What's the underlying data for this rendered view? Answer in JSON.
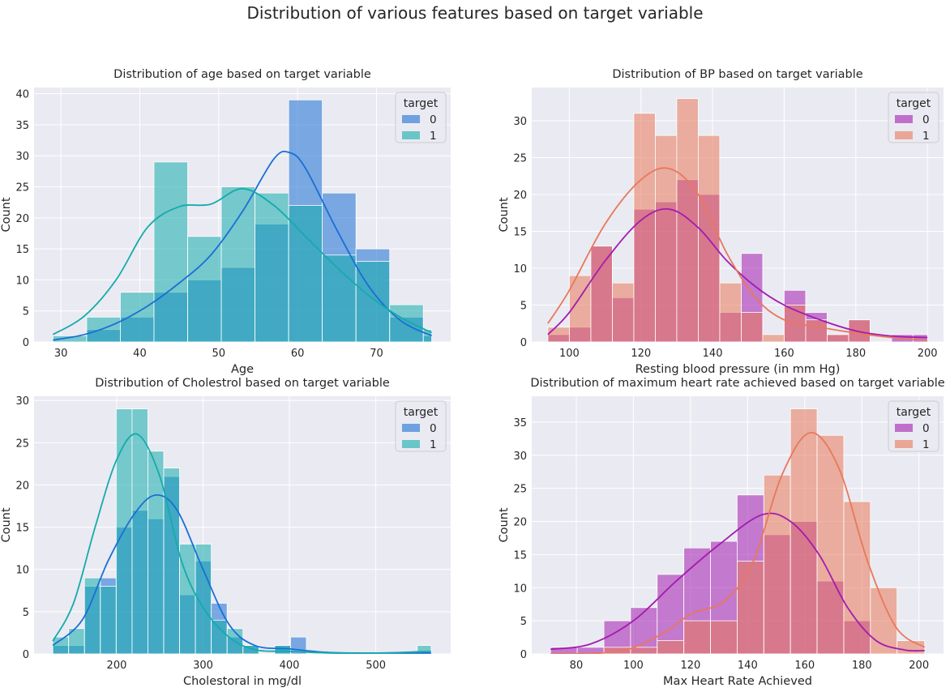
{
  "suptitle": "Distribution of various features based on target variable",
  "colors": {
    "panel_bg": "#EAEAF2",
    "grid": "#FFFFFF",
    "blue_0": "#1A6FD4",
    "teal_1": "#14ABAB",
    "magenta_0": "#A21CAF",
    "salmon_1": "#E8785A"
  },
  "chart_data": [
    {
      "type": "histogram",
      "title": "Distribution of age based on target variable",
      "xlabel": "Age",
      "ylabel": "Count",
      "xlim": [
        26.6,
        79.4
      ],
      "ylim": [
        0,
        41
      ],
      "xticks": [
        30,
        40,
        50,
        60,
        70
      ],
      "yticks": [
        0,
        5,
        10,
        15,
        20,
        25,
        30,
        35,
        40
      ],
      "bin_edges": [
        29,
        33.27,
        37.53,
        41.8,
        46.07,
        50.33,
        54.6,
        58.87,
        63.13,
        67.4,
        71.67,
        75.93,
        77
      ],
      "legend": {
        "title": "target",
        "placement": "upper right",
        "entries": [
          "0",
          "1"
        ]
      },
      "series": [
        {
          "name": "0",
          "color": "#1A6FD4",
          "counts": [
            0,
            2,
            4,
            8,
            10,
            12,
            19,
            39,
            24,
            15,
            4,
            1
          ],
          "kde_x": [
            29,
            33,
            37,
            41,
            45,
            49,
            53,
            57,
            59,
            61,
            65,
            69,
            73,
            77
          ],
          "kde_y": [
            0.3,
            1.2,
            3,
            5.8,
            9.5,
            14,
            21,
            29.5,
            30.5,
            28,
            18,
            9,
            3.5,
            1
          ]
        },
        {
          "name": "1",
          "color": "#14ABAB",
          "counts": [
            1,
            4,
            8,
            29,
            17,
            25,
            24,
            22,
            14,
            13,
            6,
            2
          ],
          "kde_x": [
            29,
            33,
            37,
            41,
            45,
            49,
            53,
            57,
            61,
            65,
            69,
            73,
            77
          ],
          "kde_y": [
            1.2,
            4.2,
            10,
            18.5,
            21.8,
            22.2,
            24.7,
            22,
            17,
            12,
            7.5,
            4,
            1.5
          ]
        }
      ]
    },
    {
      "type": "histogram",
      "title": "Distribution of BP based on target variable",
      "xlabel": "Resting blood pressure (in mm Hg)",
      "ylabel": "Count",
      "xlim": [
        89.5,
        204.5
      ],
      "ylim": [
        0,
        34.5
      ],
      "xticks": [
        100,
        120,
        140,
        160,
        180,
        200
      ],
      "yticks": [
        0,
        5,
        10,
        15,
        20,
        25,
        30
      ],
      "bin_edges": [
        94,
        100,
        106,
        112,
        118,
        124,
        130,
        136,
        142,
        148,
        154,
        160,
        166,
        172,
        178,
        184,
        190,
        196,
        200
      ],
      "legend": {
        "title": "target",
        "placement": "upper right",
        "entries": [
          "0",
          "1"
        ]
      },
      "series": [
        {
          "name": "0",
          "color": "#A21CAF",
          "counts": [
            1,
            2,
            13,
            6,
            18,
            19,
            22,
            20,
            4,
            12,
            0,
            7,
            4,
            1,
            3,
            0,
            1,
            1
          ],
          "kde_x": [
            94,
            100,
            110,
            120,
            128,
            136,
            144,
            152,
            160,
            170,
            180,
            190,
            200
          ],
          "kde_y": [
            1,
            4,
            11,
            16.5,
            18,
            15.5,
            11,
            7.5,
            5,
            3,
            1.5,
            0.8,
            0.6
          ]
        },
        {
          "name": "1",
          "color": "#E8785A",
          "counts": [
            2,
            9,
            13,
            8,
            31,
            28,
            33,
            28,
            8,
            4,
            1,
            5,
            3,
            1,
            3,
            0,
            0,
            0
          ],
          "kde_x": [
            94,
            100,
            110,
            120,
            128,
            136,
            144,
            152,
            160,
            170,
            180,
            190,
            200
          ],
          "kde_y": [
            2.5,
            7,
            16,
            22,
            23.5,
            20,
            12,
            6,
            3,
            2,
            1.2,
            0.6,
            0.2
          ]
        }
      ]
    },
    {
      "type": "histogram",
      "title": "Distribution of Cholestrol based on target variable",
      "xlabel": "Cholestoral in mg/dl",
      "ylabel": "Count",
      "xlim": [
        104.3,
        586.7
      ],
      "ylim": [
        0,
        30.5
      ],
      "xticks": [
        200,
        300,
        400,
        500
      ],
      "yticks": [
        0,
        5,
        10,
        15,
        20,
        25,
        30
      ],
      "bin_edges": [
        126,
        144.35,
        162.7,
        181.05,
        199.4,
        217.75,
        236.1,
        254.45,
        272.8,
        291.15,
        309.5,
        327.85,
        346.2,
        364.55,
        382.9,
        401.25,
        419.6,
        437.95,
        456.3,
        474.65,
        493,
        511.35,
        529.7,
        548.05,
        564
      ],
      "legend": {
        "title": "target",
        "placement": "upper right",
        "entries": [
          "0",
          "1"
        ]
      },
      "series": [
        {
          "name": "0",
          "color": "#1A6FD4",
          "counts": [
            1,
            1,
            8,
            9,
            15,
            17,
            16,
            21,
            7,
            11,
            6,
            2,
            1,
            0,
            1,
            2,
            0,
            0,
            0,
            0,
            0,
            0,
            0,
            0
          ],
          "kde_x": [
            126,
            160,
            190,
            220,
            245,
            270,
            300,
            330,
            360,
            400,
            440,
            480,
            520,
            564
          ],
          "kde_y": [
            1,
            4,
            11,
            16.5,
            18.8,
            17,
            10,
            3.5,
            1,
            0.6,
            0.2,
            0.1,
            0.1,
            0.1
          ]
        },
        {
          "name": "1",
          "color": "#14ABAB",
          "counts": [
            2,
            3,
            9,
            8,
            29,
            29,
            24,
            22,
            13,
            13,
            4,
            3,
            1,
            0,
            1,
            0,
            0,
            0,
            0,
            0,
            0,
            0,
            0,
            1
          ],
          "kde_x": [
            126,
            150,
            175,
            200,
            224,
            250,
            275,
            300,
            330,
            360,
            400,
            450,
            500,
            564
          ],
          "kde_y": [
            1.5,
            6,
            15,
            23,
            26,
            21,
            11,
            5.5,
            2,
            0.5,
            0.3,
            0.1,
            0.1,
            0.3
          ]
        }
      ]
    },
    {
      "type": "histogram",
      "title": "Distribution of maximum heart rate achieved based on target variable",
      "xlabel": "Max Heart Rate Achieved",
      "ylabel": "Count",
      "xlim": [
        64.4,
        208.6
      ],
      "ylim": [
        0,
        38.9
      ],
      "xticks": [
        80,
        100,
        120,
        140,
        160,
        180,
        200
      ],
      "yticks": [
        0,
        5,
        10,
        15,
        20,
        25,
        30,
        35
      ],
      "bin_edges": [
        71,
        80.33,
        89.67,
        99,
        108.33,
        117.67,
        127,
        136.33,
        145.67,
        155,
        164.33,
        173.67,
        183,
        192.33,
        202
      ],
      "legend": {
        "title": "target",
        "placement": "upper right",
        "entries": [
          "0",
          "1"
        ]
      },
      "series": [
        {
          "name": "0",
          "color": "#A21CAF",
          "counts": [
            1,
            1,
            5,
            7,
            12,
            16,
            17,
            24,
            18,
            20,
            11,
            5,
            0,
            0
          ],
          "kde_x": [
            71,
            85,
            100,
            115,
            130,
            145,
            155,
            165,
            175,
            185,
            195,
            202
          ],
          "kde_y": [
            0.7,
            1.5,
            5,
            11,
            16.5,
            21,
            20,
            15,
            7,
            2,
            0.6,
            0.5
          ]
        },
        {
          "name": "1",
          "color": "#E8785A",
          "counts": [
            0,
            0,
            1,
            1,
            2,
            5,
            5,
            14,
            27,
            37,
            33,
            23,
            10,
            2
          ],
          "kde_x": [
            71,
            95,
            110,
            120,
            132,
            142,
            152,
            162,
            172,
            182,
            192,
            202
          ],
          "kde_y": [
            0,
            0.4,
            3,
            6,
            8,
            14,
            27,
            33.4,
            28,
            14,
            4,
            1
          ]
        }
      ]
    }
  ]
}
